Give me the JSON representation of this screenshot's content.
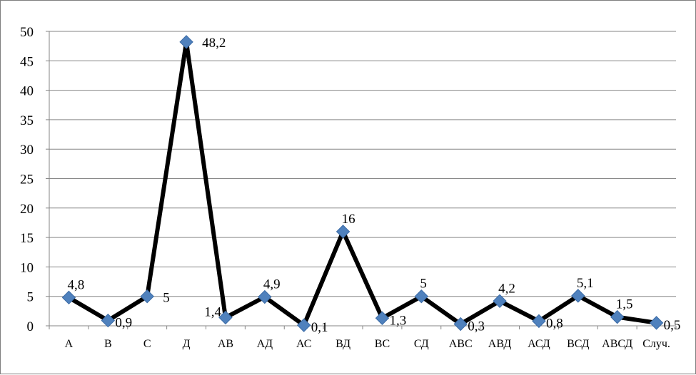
{
  "chart_data": {
    "type": "line",
    "title": "",
    "xlabel": "",
    "ylabel": "",
    "categories": [
      "А",
      "В",
      "С",
      "Д",
      "АВ",
      "АД",
      "АС",
      "ВД",
      "ВС",
      "СД",
      "АВС",
      "АВД",
      "АСД",
      "ВСД",
      "АВСД",
      "Случ."
    ],
    "series": [
      {
        "values": [
          4.8,
          0.9,
          5,
          48.2,
          1.4,
          4.9,
          0.1,
          16,
          1.3,
          5,
          0.3,
          4.2,
          0.8,
          5.1,
          1.5,
          0.5
        ]
      }
    ],
    "data_labels": [
      "4,8",
      "0,9",
      "5",
      "48,2",
      "1,4",
      "4,9",
      "0,1",
      "16",
      "1,3",
      "5",
      "0,3",
      "4,2",
      "0,8",
      "5,1",
      "1,5",
      "0,5"
    ],
    "ylim": [
      0,
      50
    ],
    "yticks": [
      "0",
      "5",
      "10",
      "15",
      "20",
      "25",
      "30",
      "35",
      "40",
      "45",
      "50"
    ],
    "grid": true,
    "legend": "none",
    "colors": {
      "line": "#000000",
      "marker": "#4f81bd",
      "gridline": "#868686",
      "axis": "#868686",
      "frame": "#7f7f7f"
    }
  }
}
